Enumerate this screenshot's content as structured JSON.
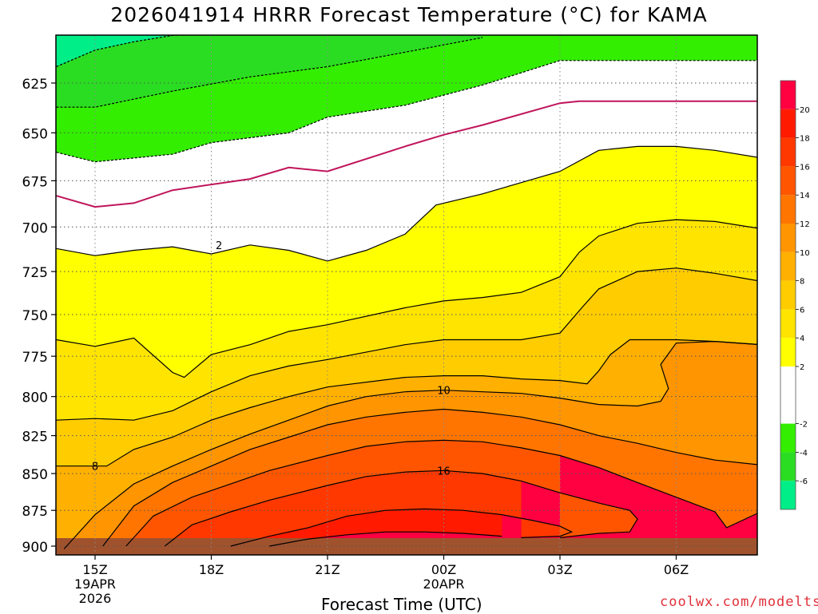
{
  "title": "2026041914 HRRR Forecast Temperature (°C) for KAMA",
  "xlabel": "Forecast Time (UTC)",
  "credit": "coolwx.com/modelts",
  "chart_data": {
    "type": "heatmap",
    "title": "2026041914 HRRR Forecast Temperature (°C) for KAMA",
    "xlabel": "Forecast Time (UTC)",
    "ylabel": "",
    "x_ticks": [
      {
        "h": 1,
        "lines": [
          "15Z",
          "19APR",
          "2026"
        ]
      },
      {
        "h": 4,
        "lines": [
          "18Z"
        ]
      },
      {
        "h": 7,
        "lines": [
          "21Z"
        ]
      },
      {
        "h": 10,
        "lines": [
          "00Z",
          "20APR"
        ]
      },
      {
        "h": 13,
        "lines": [
          "03Z"
        ]
      },
      {
        "h": 16,
        "lines": [
          "06Z"
        ]
      }
    ],
    "xlim": [
      0,
      18.8
    ],
    "y_ticks": [
      625,
      650,
      675,
      700,
      725,
      750,
      775,
      800,
      825,
      850,
      875,
      900
    ],
    "ylim": [
      600,
      905
    ],
    "y_scale": "pressure (inverted, log)",
    "grid": true,
    "ground_level_hpa": 900,
    "levels": [
      -8,
      -6,
      -4,
      -2,
      0,
      2,
      4,
      6,
      8,
      10,
      12,
      14,
      16,
      18,
      20,
      22
    ],
    "colorbar": {
      "ticks": [
        20,
        18,
        16,
        14,
        12,
        10,
        8,
        6,
        4,
        2,
        -2,
        -4,
        -6
      ],
      "colors": [
        {
          "from": 20,
          "to": 22,
          "color": "#ff0040"
        },
        {
          "from": 18,
          "to": 20,
          "color": "#ff1a00"
        },
        {
          "from": 16,
          "to": 18,
          "color": "#ff3800"
        },
        {
          "from": 14,
          "to": 16,
          "color": "#ff5500"
        },
        {
          "from": 12,
          "to": 14,
          "color": "#ff7500"
        },
        {
          "from": 10,
          "to": 12,
          "color": "#ff9500"
        },
        {
          "from": 8,
          "to": 10,
          "color": "#ffb000"
        },
        {
          "from": 6,
          "to": 8,
          "color": "#ffcc00"
        },
        {
          "from": 4,
          "to": 6,
          "color": "#ffe400"
        },
        {
          "from": 2,
          "to": 4,
          "color": "#ffff00"
        },
        {
          "from": -2,
          "to": 2,
          "color": "#ffffff"
        },
        {
          "from": -4,
          "to": -2,
          "color": "#33ee00"
        },
        {
          "from": -6,
          "to": -4,
          "color": "#2bdd22"
        },
        {
          "from": -8,
          "to": -6,
          "color": "#00ee88"
        }
      ]
    },
    "isotherms": [
      {
        "value": -6,
        "style": "dashed",
        "points": [
          [
            0,
            617
          ],
          [
            1,
            609
          ],
          [
            2,
            605
          ],
          [
            3,
            602
          ],
          [
            4,
            601
          ]
        ]
      },
      {
        "value": -4,
        "style": "dashed",
        "points": [
          [
            0,
            637
          ],
          [
            1,
            637
          ],
          [
            3,
            629
          ],
          [
            5,
            622
          ],
          [
            7,
            617
          ],
          [
            9,
            610
          ],
          [
            11,
            603
          ]
        ]
      },
      {
        "value": -2,
        "style": "dashed",
        "points": [
          [
            0,
            660
          ],
          [
            1,
            665
          ],
          [
            3,
            661
          ],
          [
            4,
            655
          ],
          [
            6,
            650
          ],
          [
            7,
            642
          ],
          [
            9,
            636
          ],
          [
            11,
            626
          ],
          [
            13,
            614
          ],
          [
            15,
            614
          ],
          [
            18.8,
            614
          ]
        ]
      },
      {
        "value": 0,
        "style": "solid",
        "color": "#c0145a",
        "points": [
          [
            0,
            683
          ],
          [
            1,
            689
          ],
          [
            2,
            687
          ],
          [
            3,
            680
          ],
          [
            5,
            674
          ],
          [
            6,
            668
          ],
          [
            7,
            670
          ],
          [
            9,
            657
          ],
          [
            10,
            651
          ],
          [
            11,
            646
          ],
          [
            13,
            635
          ],
          [
            13.5,
            634
          ],
          [
            18.8,
            634
          ]
        ]
      },
      {
        "value": 2,
        "style": "solid",
        "label_at": [
          4.2,
          710
        ],
        "points": [
          [
            0,
            712
          ],
          [
            1,
            716
          ],
          [
            2,
            713
          ],
          [
            3,
            711
          ],
          [
            4,
            715
          ],
          [
            5,
            710
          ],
          [
            6,
            713
          ],
          [
            7,
            719
          ],
          [
            8,
            713
          ],
          [
            9,
            704
          ],
          [
            9.8,
            688
          ],
          [
            11,
            682
          ],
          [
            13,
            670
          ],
          [
            14,
            659
          ],
          [
            15,
            657
          ],
          [
            16,
            657
          ],
          [
            17,
            659
          ],
          [
            18.8,
            665
          ]
        ]
      },
      {
        "value": 4,
        "style": "solid",
        "points": [
          [
            0,
            765
          ],
          [
            1,
            769
          ],
          [
            2,
            764
          ],
          [
            3,
            785
          ],
          [
            3.3,
            788
          ],
          [
            4,
            774
          ],
          [
            5,
            768
          ],
          [
            6,
            760
          ],
          [
            7,
            756
          ],
          [
            9,
            746
          ],
          [
            10,
            742
          ],
          [
            11,
            740
          ],
          [
            12,
            737
          ],
          [
            13,
            728
          ],
          [
            13.5,
            714
          ],
          [
            14,
            705
          ],
          [
            15,
            698
          ],
          [
            16,
            696
          ],
          [
            17,
            697
          ],
          [
            18.8,
            703
          ]
        ]
      },
      {
        "value": 6,
        "style": "solid",
        "points": [
          [
            0,
            815
          ],
          [
            1,
            814
          ],
          [
            2,
            815
          ],
          [
            3,
            809
          ],
          [
            4,
            797
          ],
          [
            5,
            787
          ],
          [
            6,
            781
          ],
          [
            7,
            777
          ],
          [
            9,
            768
          ],
          [
            10,
            765
          ],
          [
            11,
            765
          ],
          [
            12,
            765
          ],
          [
            13,
            761
          ],
          [
            13.6,
            745
          ],
          [
            14,
            735
          ],
          [
            15,
            725
          ],
          [
            16,
            723
          ],
          [
            17,
            726
          ],
          [
            18.8,
            733
          ]
        ]
      },
      {
        "value": 8,
        "style": "solid",
        "label_at": [
          1,
          845
        ],
        "points": [
          [
            0,
            845
          ],
          [
            1,
            845
          ],
          [
            1.3,
            845
          ],
          [
            2,
            834
          ],
          [
            3,
            826
          ],
          [
            4,
            815
          ],
          [
            5,
            807
          ],
          [
            6,
            800
          ],
          [
            7,
            794
          ],
          [
            9,
            788
          ],
          [
            10,
            787
          ],
          [
            11,
            787
          ],
          [
            12,
            789
          ],
          [
            13,
            790
          ],
          [
            13.7,
            792
          ],
          [
            14,
            784
          ],
          [
            14.3,
            774
          ],
          [
            14.8,
            765
          ],
          [
            15.7,
            765
          ],
          [
            16,
            765
          ],
          [
            17,
            766
          ],
          [
            18.8,
            769
          ]
        ]
      },
      {
        "value": 10,
        "style": "solid",
        "label_at": [
          10,
          796
        ],
        "points": [
          [
            0.2,
            902
          ],
          [
            1,
            878
          ],
          [
            2,
            857
          ],
          [
            3,
            845
          ],
          [
            4,
            834
          ],
          [
            5,
            824
          ],
          [
            6,
            815
          ],
          [
            7,
            806
          ],
          [
            8,
            800
          ],
          [
            9,
            797
          ],
          [
            10,
            796
          ],
          [
            11,
            797
          ],
          [
            12,
            798
          ],
          [
            13,
            801
          ],
          [
            14,
            805
          ],
          [
            15,
            806
          ],
          [
            15.6,
            803
          ],
          [
            15.8,
            795
          ],
          [
            15.6,
            780
          ],
          [
            16,
            767
          ],
          [
            17,
            766
          ],
          [
            18.8,
            769
          ]
        ]
      },
      {
        "value": 12,
        "style": "solid",
        "points": [
          [
            1.2,
            900
          ],
          [
            2,
            872
          ],
          [
            3,
            856
          ],
          [
            4,
            845
          ],
          [
            5,
            834
          ],
          [
            6,
            826
          ],
          [
            7,
            818
          ],
          [
            8,
            813
          ],
          [
            9,
            810
          ],
          [
            10,
            808
          ],
          [
            11,
            810
          ],
          [
            12,
            813
          ],
          [
            13,
            818
          ],
          [
            14,
            825
          ],
          [
            15,
            830
          ],
          [
            16,
            836
          ],
          [
            17,
            841
          ],
          [
            18.8,
            846
          ]
        ]
      },
      {
        "value": 14,
        "style": "solid",
        "points": [
          [
            1.8,
            900
          ],
          [
            2.5,
            879
          ],
          [
            3.5,
            866
          ],
          [
            4.5,
            857
          ],
          [
            5.5,
            848
          ],
          [
            7,
            838
          ],
          [
            8,
            832
          ],
          [
            9,
            829
          ],
          [
            10,
            828
          ],
          [
            11,
            829
          ],
          [
            12,
            833
          ],
          [
            13,
            838
          ],
          [
            14,
            846
          ],
          [
            15,
            856
          ],
          [
            16,
            866
          ],
          [
            17,
            876
          ],
          [
            17.3,
            887
          ],
          [
            18.1,
            877
          ],
          [
            18.8,
            874
          ]
        ]
      },
      {
        "value": 16,
        "style": "solid",
        "label_at": [
          10,
          848
        ],
        "points": [
          [
            2.8,
            900
          ],
          [
            3.5,
            885
          ],
          [
            4.5,
            876
          ],
          [
            5.5,
            868
          ],
          [
            7,
            858
          ],
          [
            8,
            852
          ],
          [
            9,
            849
          ],
          [
            10,
            848
          ],
          [
            11,
            850
          ],
          [
            12,
            855
          ],
          [
            13,
            863
          ],
          [
            14,
            870
          ],
          [
            14.8,
            875
          ],
          [
            15,
            881
          ],
          [
            14.8,
            890
          ],
          [
            14,
            891
          ],
          [
            13,
            894
          ]
        ]
      },
      {
        "value": 18,
        "style": "solid",
        "points": [
          [
            4.5,
            900
          ],
          [
            5.5,
            893
          ],
          [
            6.5,
            887
          ],
          [
            7.5,
            879
          ],
          [
            8.5,
            875
          ],
          [
            9.5,
            874
          ],
          [
            10.5,
            875
          ],
          [
            11.5,
            878
          ],
          [
            12.3,
            882
          ],
          [
            13,
            886
          ],
          [
            13.3,
            890
          ],
          [
            13,
            893
          ],
          [
            12,
            894
          ]
        ]
      },
      {
        "value": 20,
        "style": "solid",
        "points": [
          [
            5.5,
            900
          ],
          [
            6.5,
            895
          ],
          [
            7.5,
            892
          ],
          [
            8.5,
            890
          ],
          [
            9.5,
            890
          ],
          [
            10.5,
            891
          ],
          [
            11.5,
            893
          ]
        ]
      }
    ]
  }
}
